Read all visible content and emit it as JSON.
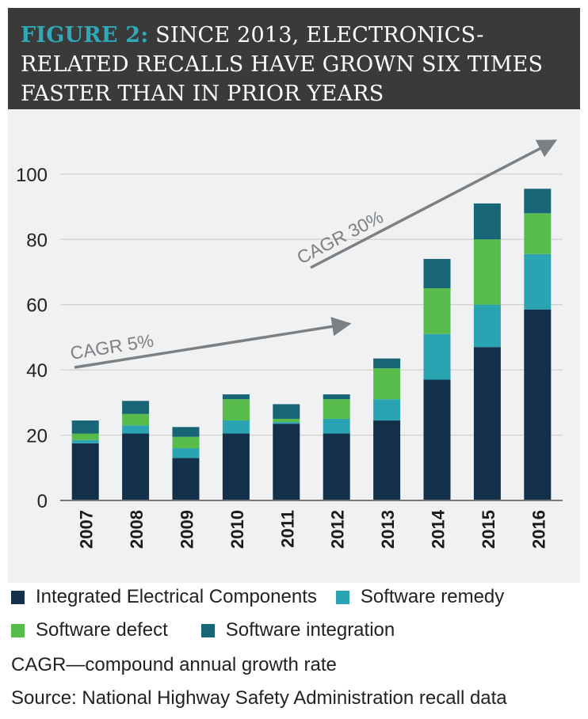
{
  "header": {
    "label": "FIGURE 2:",
    "title_lines": [
      "SINCE 2013, ELECTRONICS-",
      "RELATED RECALLS HAVE GROWN SIX TIMES",
      "FASTER THAN IN PRIOR YEARS"
    ]
  },
  "chart_data": {
    "type": "bar",
    "stacked": true,
    "categories": [
      "2007",
      "2008",
      "2009",
      "2010",
      "2011",
      "2012",
      "2013",
      "2014",
      "2015",
      "2016"
    ],
    "ylim": [
      0,
      115
    ],
    "yticks": [
      0,
      20,
      40,
      60,
      80,
      100
    ],
    "series": [
      {
        "name": "Integrated Electrical Components",
        "color": "#13304a",
        "values": [
          17.5,
          20.5,
          13,
          20.5,
          23.5,
          20.5,
          24.5,
          37,
          47,
          58.5
        ]
      },
      {
        "name": "Software remedy",
        "color": "#2aa3b3",
        "values": [
          1,
          2.5,
          3,
          4,
          0.5,
          4.5,
          6.5,
          14,
          13,
          17
        ]
      },
      {
        "name": "Software defect",
        "color": "#58bc4b",
        "values": [
          2,
          3.5,
          3.5,
          6.5,
          1,
          6,
          9.5,
          14,
          20,
          12.5
        ]
      },
      {
        "name": "Software integration",
        "color": "#176577",
        "values": [
          4,
          4,
          3,
          1.5,
          4.5,
          1.5,
          3,
          9,
          11,
          7.5
        ]
      }
    ],
    "annotations": [
      {
        "text": "CAGR 5%"
      },
      {
        "text": "CAGR 30%"
      }
    ]
  },
  "notes": {
    "abbrev": "CAGR—compound annual growth rate",
    "source": "Source: National Highway Safety Administration recall data"
  }
}
